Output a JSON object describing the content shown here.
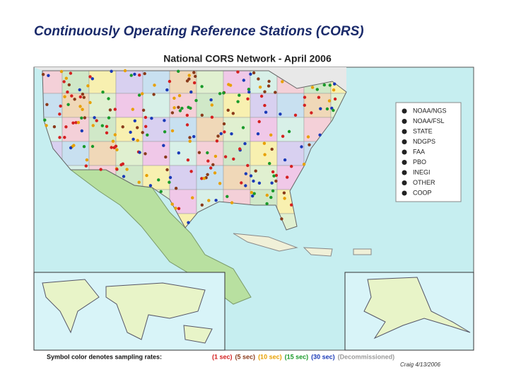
{
  "header": {
    "title": "Continuously Operating Reference Stations (CORS)"
  },
  "map": {
    "title": "National CORS Network - April 2006",
    "legend": [
      "NOAA/NGS",
      "NOAA/FSL",
      "STATE",
      "NDGPS",
      "FAA",
      "PBO",
      "INEGI",
      "OTHER",
      "COOP"
    ]
  },
  "footer": {
    "label": "Symbol color denotes sampling rates:",
    "rates": [
      {
        "label": "(1 sec)",
        "color": "#d42020"
      },
      {
        "label": "(5 sec)",
        "color": "#8a3a1a"
      },
      {
        "label": "(10 sec)",
        "color": "#e8a000"
      },
      {
        "label": "(15 sec)",
        "color": "#1a9a2a"
      },
      {
        "label": "(30 sec)",
        "color": "#1a3ab8"
      },
      {
        "label": "(Decommissioned)",
        "color": "#9a9a9a"
      }
    ],
    "credit": "Craig 4/13/2006"
  }
}
